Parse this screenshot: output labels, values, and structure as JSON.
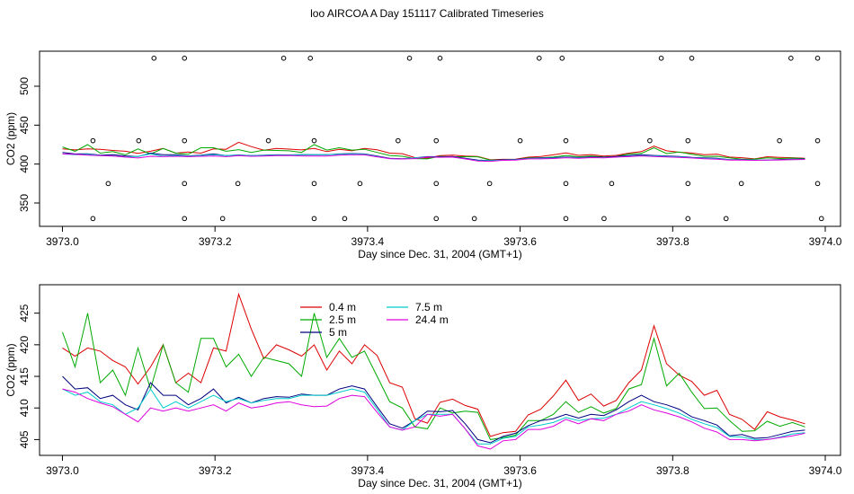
{
  "chart_data": {
    "title": "loo AIRCOA A  Day 151117  Calibrated Timeseries",
    "panels": [
      {
        "type": "line",
        "xlabel": "Day since Dec. 31, 2004 (GMT+1)",
        "ylabel": "CO2 (ppm)",
        "xlim": [
          3972.97,
          3974.02
        ],
        "ylim": [
          320,
          545
        ],
        "xticks": [
          "3973.0",
          "3973.2",
          "3973.4",
          "3973.6",
          "3973.8",
          "3974.0"
        ],
        "xtick_values": [
          3973.0,
          3973.2,
          3973.4,
          3973.6,
          3973.8,
          3974.0
        ],
        "yticks": [
          "350",
          "400",
          "450",
          "500"
        ],
        "ytick_values": [
          350,
          400,
          450,
          500
        ],
        "grid": false,
        "series": [
          {
            "name": "0.4 m",
            "color": "#dd0000",
            "y": [
              419.5,
              418.2,
              419.5,
              419.0,
              417.5,
              416.5,
              413.8,
              416.5,
              420.0,
              414.0,
              415.5,
              414.0,
              419.5,
              419.0,
              428.0,
              422.5,
              417.8,
              420.0,
              419.2,
              418.2,
              420.0,
              416.0,
              419.0,
              417.0,
              420.0,
              418.3,
              414.0,
              413.3,
              408.3,
              407.6,
              410.9,
              411.4,
              410.4,
              409.8,
              405.5,
              406.1,
              406.3,
              408.9,
              409.8,
              411.9,
              414.4,
              411.2,
              412.2,
              410.3,
              411.2,
              414.0,
              416.0,
              423.0,
              417.0,
              415.2,
              414.2,
              412.0,
              412.8,
              409.0,
              408.2,
              406.6,
              409.4,
              408.6,
              408.1,
              407.5
            ]
          },
          {
            "name": "2.5 m",
            "color": "#00aa00",
            "y": [
              422.0,
              416.5,
              425.0,
              414.0,
              416.0,
              412.0,
              419.5,
              413.0,
              420.0,
              414.0,
              412.5,
              421.0,
              421.0,
              416.5,
              418.5,
              415.0,
              418.0,
              417.5,
              417.0,
              415.0,
              425.0,
              418.0,
              421.0,
              418.0,
              419.0,
              415.0,
              411.0,
              410.0,
              407.0,
              406.7,
              410.0,
              409.2,
              409.5,
              409.3,
              405.0,
              405.3,
              405.7,
              408.0,
              408.0,
              409.0,
              411.0,
              409.3,
              410.2,
              409.2,
              409.9,
              413.0,
              413.7,
              421.0,
              413.5,
              415.5,
              412.5,
              409.9,
              410.0,
              408.0,
              406.3,
              406.4,
              407.9,
              407.1,
              407.7,
              407.0
            ]
          },
          {
            "name": "5 m",
            "color": "#000080",
            "y": [
              415.0,
              413.0,
              413.2,
              411.5,
              412.0,
              410.5,
              409.7,
              414.0,
              412.0,
              412.0,
              410.5,
              411.5,
              413.0,
              410.8,
              411.7,
              410.8,
              411.5,
              411.8,
              411.7,
              412.2,
              412.0,
              412.0,
              413.0,
              413.5,
              413.0,
              410.2,
              407.5,
              406.8,
              408.0,
              409.5,
              409.4,
              409.6,
              407.5,
              405.0,
              404.5,
              405.5,
              406.0,
              407.2,
              408.0,
              408.3,
              409.0,
              408.4,
              409.0,
              408.8,
              409.7,
              411.0,
              412.0,
              411.0,
              410.5,
              409.8,
              408.6,
              408.0,
              407.3,
              405.6,
              405.8,
              405.2,
              405.3,
              405.8,
              406.3,
              406.5
            ]
          },
          {
            "name": "7.5 m",
            "color": "#00cccc",
            "y": [
              413.0,
              412.0,
              412.5,
              411.0,
              410.5,
              409.0,
              410.0,
              413.0,
              410.0,
              411.0,
              410.0,
              411.0,
              412.0,
              411.0,
              411.5,
              410.8,
              411.2,
              411.5,
              411.5,
              412.0,
              412.0,
              412.0,
              412.5,
              413.0,
              412.5,
              409.8,
              407.0,
              406.5,
              408.0,
              409.0,
              409.0,
              409.0,
              406.7,
              404.3,
              404.3,
              405.2,
              405.5,
              407.0,
              407.3,
              407.7,
              408.5,
              408.0,
              408.3,
              408.4,
              409.0,
              410.0,
              411.0,
              410.5,
              409.9,
              409.2,
              408.2,
              407.5,
              406.9,
              405.5,
              405.4,
              405.0,
              405.0,
              405.4,
              405.9,
              406.1
            ]
          },
          {
            "name": "24.4 m",
            "color": "#dd00dd",
            "y": [
              413.0,
              412.5,
              411.5,
              410.8,
              410.2,
              409.0,
              407.8,
              410.0,
              409.5,
              410.0,
              409.5,
              410.0,
              410.5,
              409.5,
              410.8,
              410.0,
              410.3,
              410.8,
              411.0,
              410.5,
              410.2,
              410.3,
              411.5,
              412.0,
              411.8,
              409.3,
              407.0,
              406.5,
              407.0,
              409.0,
              408.7,
              409.0,
              406.7,
              404.0,
              403.5,
              404.8,
              405.0,
              406.6,
              406.6,
              407.1,
              408.2,
              407.5,
              408.3,
              408.0,
              409.0,
              409.5,
              410.5,
              409.7,
              409.2,
              408.6,
              407.8,
              406.8,
              406.2,
              405.0,
              405.0,
              404.8,
              405.0,
              405.3,
              405.6,
              406.0
            ]
          }
        ],
        "scatter": [
          {
            "x": [
              3973.04,
              3973.1,
              3973.16,
              3973.27,
              3973.33,
              3973.44,
              3973.49,
              3973.6,
              3973.66,
              3973.77,
              3973.82,
              3973.94,
              3973.99
            ],
            "y": 430
          },
          {
            "x": [
              3973.06,
              3973.16,
              3973.23,
              3973.33,
              3973.39,
              3973.49,
              3973.56,
              3973.66,
              3973.72,
              3973.82,
              3973.89,
              3973.99
            ],
            "y": 375
          },
          {
            "x": [
              3973.04,
              3973.16,
              3973.21,
              3973.33,
              3973.37,
              3973.49,
              3973.54,
              3973.66,
              3973.71,
              3973.82,
              3973.87,
              3973.995
            ],
            "y": 330
          },
          {
            "x": [
              3973.12,
              3973.16,
              3973.29,
              3973.325,
              3973.455,
              3973.495,
              3973.625,
              3973.655,
              3973.785,
              3973.825,
              3973.955,
              3973.99
            ],
            "y": 536
          }
        ]
      },
      {
        "type": "line",
        "xlabel": "Day since Dec. 31, 2004 (GMT+1)",
        "ylabel": "CO2 (ppm)",
        "xlim": [
          3972.97,
          3974.02
        ],
        "ylim": [
          402.5,
          429.5
        ],
        "xticks": [
          "3973.0",
          "3973.2",
          "3973.4",
          "3973.6",
          "3973.8",
          "3974.0"
        ],
        "xtick_values": [
          3973.0,
          3973.2,
          3973.4,
          3973.6,
          3973.8,
          3974.0
        ],
        "yticks": [
          "405",
          "410",
          "415",
          "420",
          "425"
        ],
        "ytick_values": [
          405,
          410,
          415,
          420,
          425
        ],
        "grid": false,
        "legend_position": "top-center",
        "series_ref": "same as panel 1"
      }
    ],
    "legend": [
      {
        "name": "0.4 m",
        "color": "#dd0000"
      },
      {
        "name": "7.5 m",
        "color": "#00cccc"
      },
      {
        "name": "2.5 m",
        "color": "#00aa00"
      },
      {
        "name": "24.4 m",
        "color": "#dd00dd"
      },
      {
        "name": "5 m",
        "color": "#000080"
      }
    ]
  }
}
